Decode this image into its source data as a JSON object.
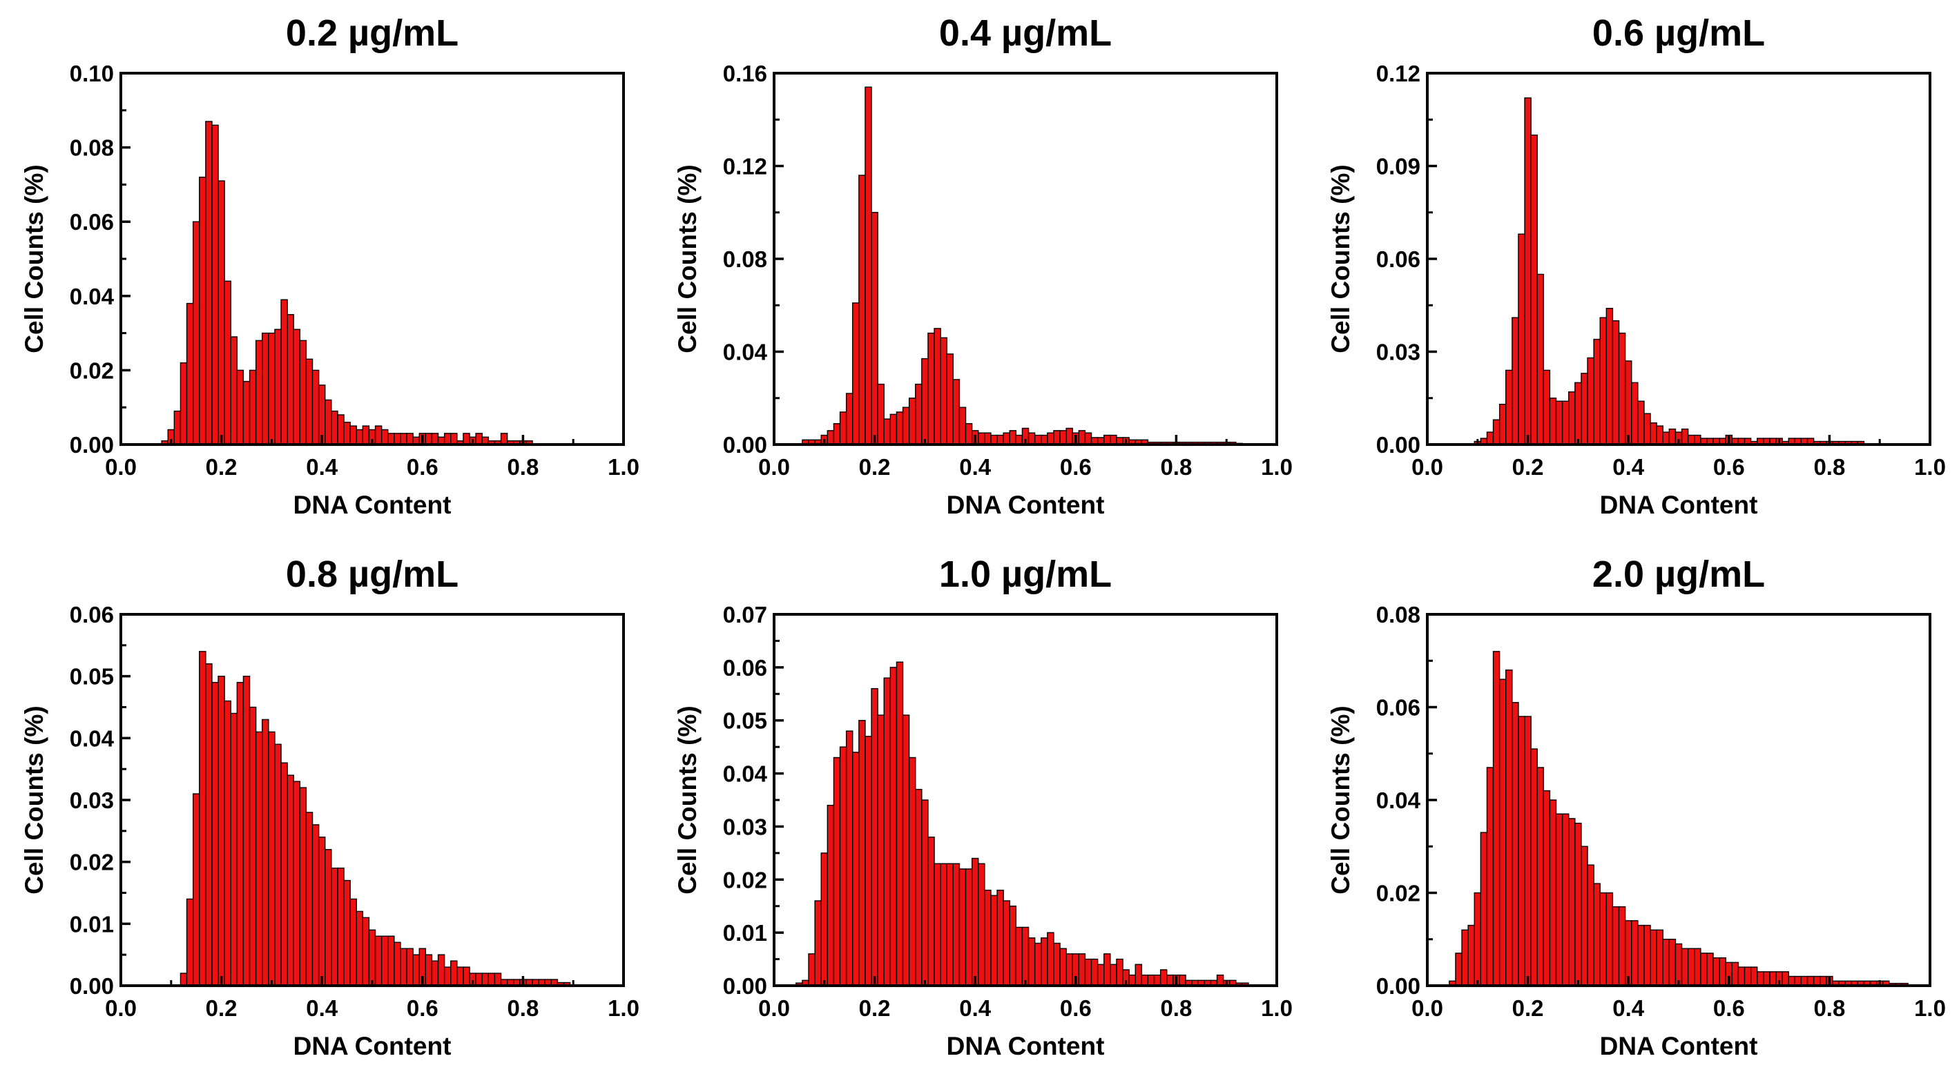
{
  "figure": {
    "bar_color": "#ee1111",
    "bar_edge_color": "#000000",
    "background": "#ffffff"
  },
  "chart_data": [
    {
      "type": "bar",
      "title": "0.2 µg/mL",
      "xlabel": "DNA Content",
      "ylabel": "Cell Counts (%)",
      "xlim": [
        0.0,
        1.0
      ],
      "ylim": [
        0.0,
        0.1
      ],
      "xticks": [
        "0.0",
        "0.2",
        "0.4",
        "0.6",
        "0.8",
        "1.0"
      ],
      "yticks": [
        "0.00",
        "0.02",
        "0.04",
        "0.06",
        "0.08",
        "0.10"
      ],
      "grid": false,
      "bin_width": 0.0125,
      "x": [
        0.0875,
        0.1,
        0.1125,
        0.125,
        0.1375,
        0.15,
        0.1625,
        0.175,
        0.1875,
        0.2,
        0.2125,
        0.225,
        0.2375,
        0.25,
        0.2625,
        0.275,
        0.2875,
        0.3,
        0.3125,
        0.325,
        0.3375,
        0.35,
        0.3625,
        0.375,
        0.3875,
        0.4,
        0.4125,
        0.425,
        0.4375,
        0.45,
        0.4625,
        0.475,
        0.4875,
        0.5,
        0.5125,
        0.525,
        0.5375,
        0.55,
        0.5625,
        0.575,
        0.5875,
        0.6,
        0.6125,
        0.625,
        0.6375,
        0.65,
        0.6625,
        0.675,
        0.6875,
        0.7,
        0.7125,
        0.725,
        0.7375,
        0.75,
        0.7625,
        0.775,
        0.7875,
        0.8,
        0.8125
      ],
      "values": [
        0.001,
        0.004,
        0.009,
        0.022,
        0.038,
        0.06,
        0.072,
        0.087,
        0.086,
        0.071,
        0.044,
        0.029,
        0.02,
        0.017,
        0.02,
        0.028,
        0.03,
        0.03,
        0.031,
        0.039,
        0.035,
        0.031,
        0.028,
        0.023,
        0.02,
        0.016,
        0.012,
        0.009,
        0.008,
        0.006,
        0.005,
        0.004,
        0.005,
        0.004,
        0.005,
        0.004,
        0.003,
        0.003,
        0.003,
        0.003,
        0.002,
        0.003,
        0.003,
        0.003,
        0.002,
        0.003,
        0.003,
        0.001,
        0.003,
        0.002,
        0.003,
        0.002,
        0.001,
        0.001,
        0.003,
        0.001,
        0.001,
        0.001,
        0.001
      ]
    },
    {
      "type": "bar",
      "title": "0.4 µg/mL",
      "xlabel": "DNA Content",
      "ylabel": "Cell Counts (%)",
      "xlim": [
        0.0,
        1.0
      ],
      "ylim": [
        0.0,
        0.16
      ],
      "xticks": [
        "0.0",
        "0.2",
        "0.4",
        "0.6",
        "0.8",
        "1.0"
      ],
      "yticks": [
        "0.00",
        "0.04",
        "0.08",
        "0.12",
        "0.16"
      ],
      "grid": false,
      "bin_width": 0.0125,
      "x": [
        0.0625,
        0.075,
        0.0875,
        0.1,
        0.1125,
        0.125,
        0.1375,
        0.15,
        0.1625,
        0.175,
        0.1875,
        0.2,
        0.2125,
        0.225,
        0.2375,
        0.25,
        0.2625,
        0.275,
        0.2875,
        0.3,
        0.3125,
        0.325,
        0.3375,
        0.35,
        0.3625,
        0.375,
        0.3875,
        0.4,
        0.4125,
        0.425,
        0.4375,
        0.45,
        0.4625,
        0.475,
        0.4875,
        0.5,
        0.5125,
        0.525,
        0.5375,
        0.55,
        0.5625,
        0.575,
        0.5875,
        0.6,
        0.6125,
        0.625,
        0.6375,
        0.65,
        0.6625,
        0.675,
        0.6875,
        0.7,
        0.7125,
        0.725,
        0.7375,
        0.75,
        0.7625,
        0.775,
        0.7875,
        0.8,
        0.8125,
        0.825,
        0.8375,
        0.85,
        0.8625,
        0.875,
        0.8875,
        0.9,
        0.9125,
        0.925
      ],
      "values": [
        0.002,
        0.002,
        0.002,
        0.004,
        0.006,
        0.009,
        0.014,
        0.022,
        0.061,
        0.116,
        0.154,
        0.1,
        0.026,
        0.011,
        0.013,
        0.014,
        0.016,
        0.02,
        0.026,
        0.037,
        0.048,
        0.05,
        0.046,
        0.039,
        0.028,
        0.016,
        0.009,
        0.006,
        0.005,
        0.005,
        0.004,
        0.004,
        0.005,
        0.006,
        0.004,
        0.007,
        0.005,
        0.004,
        0.004,
        0.005,
        0.006,
        0.006,
        0.007,
        0.005,
        0.006,
        0.005,
        0.003,
        0.003,
        0.004,
        0.004,
        0.003,
        0.003,
        0.002,
        0.002,
        0.002,
        0.001,
        0.001,
        0.001,
        0.001,
        0.001,
        0.001,
        0.001,
        0.001,
        0.001,
        0.001,
        0.001,
        0.001,
        0.001,
        0.001,
        0.0005
      ]
    },
    {
      "type": "bar",
      "title": "0.6 µg/mL",
      "xlabel": "DNA Content",
      "ylabel": "Cell Counts (%)",
      "xlim": [
        0.0,
        1.0
      ],
      "ylim": [
        0.0,
        0.12
      ],
      "xticks": [
        "0.0",
        "0.2",
        "0.4",
        "0.6",
        "0.8",
        "1.0"
      ],
      "yticks": [
        "0.00",
        "0.03",
        "0.06",
        "0.09",
        "0.12"
      ],
      "grid": false,
      "bin_width": 0.0125,
      "x": [
        0.1,
        0.1125,
        0.125,
        0.1375,
        0.15,
        0.1625,
        0.175,
        0.1875,
        0.2,
        0.2125,
        0.225,
        0.2375,
        0.25,
        0.2625,
        0.275,
        0.2875,
        0.3,
        0.3125,
        0.325,
        0.3375,
        0.35,
        0.3625,
        0.375,
        0.3875,
        0.4,
        0.4125,
        0.425,
        0.4375,
        0.45,
        0.4625,
        0.475,
        0.4875,
        0.5,
        0.5125,
        0.525,
        0.5375,
        0.55,
        0.5625,
        0.575,
        0.5875,
        0.6,
        0.6125,
        0.625,
        0.6375,
        0.65,
        0.6625,
        0.675,
        0.6875,
        0.7,
        0.7125,
        0.725,
        0.7375,
        0.75,
        0.7625,
        0.775,
        0.7875,
        0.8,
        0.8125,
        0.825,
        0.8375,
        0.85,
        0.8625
      ],
      "values": [
        0.001,
        0.002,
        0.004,
        0.008,
        0.013,
        0.024,
        0.041,
        0.068,
        0.112,
        0.1,
        0.055,
        0.024,
        0.015,
        0.014,
        0.014,
        0.017,
        0.02,
        0.023,
        0.028,
        0.034,
        0.041,
        0.044,
        0.04,
        0.036,
        0.027,
        0.02,
        0.014,
        0.01,
        0.007,
        0.006,
        0.004,
        0.005,
        0.004,
        0.005,
        0.003,
        0.003,
        0.002,
        0.002,
        0.002,
        0.002,
        0.003,
        0.002,
        0.002,
        0.002,
        0.001,
        0.002,
        0.002,
        0.002,
        0.002,
        0.001,
        0.002,
        0.002,
        0.002,
        0.002,
        0.001,
        0.001,
        0.001,
        0.001,
        0.001,
        0.001,
        0.001,
        0.001
      ]
    },
    {
      "type": "bar",
      "title": "0.8 µg/mL",
      "xlabel": "DNA Content",
      "ylabel": "Cell Counts (%)",
      "xlim": [
        0.0,
        1.0
      ],
      "ylim": [
        0.0,
        0.06
      ],
      "xticks": [
        "0.0",
        "0.2",
        "0.4",
        "0.6",
        "0.8",
        "1.0"
      ],
      "yticks": [
        "0.00",
        "0.01",
        "0.02",
        "0.03",
        "0.04",
        "0.05",
        "0.06"
      ],
      "grid": false,
      "bin_width": 0.0125,
      "x": [
        0.125,
        0.1375,
        0.15,
        0.1625,
        0.175,
        0.1875,
        0.2,
        0.2125,
        0.225,
        0.2375,
        0.25,
        0.2625,
        0.275,
        0.2875,
        0.3,
        0.3125,
        0.325,
        0.3375,
        0.35,
        0.3625,
        0.375,
        0.3875,
        0.4,
        0.4125,
        0.425,
        0.4375,
        0.45,
        0.4625,
        0.475,
        0.4875,
        0.5,
        0.5125,
        0.525,
        0.5375,
        0.55,
        0.5625,
        0.575,
        0.5875,
        0.6,
        0.6125,
        0.625,
        0.6375,
        0.65,
        0.6625,
        0.675,
        0.6875,
        0.7,
        0.7125,
        0.725,
        0.7375,
        0.75,
        0.7625,
        0.775,
        0.7875,
        0.8,
        0.8125,
        0.825,
        0.8375,
        0.85,
        0.8625,
        0.875,
        0.8875
      ],
      "values": [
        0.002,
        0.014,
        0.031,
        0.054,
        0.052,
        0.049,
        0.05,
        0.046,
        0.044,
        0.049,
        0.05,
        0.045,
        0.041,
        0.043,
        0.041,
        0.039,
        0.036,
        0.034,
        0.033,
        0.032,
        0.028,
        0.026,
        0.024,
        0.022,
        0.019,
        0.019,
        0.017,
        0.014,
        0.012,
        0.011,
        0.009,
        0.008,
        0.008,
        0.008,
        0.007,
        0.006,
        0.006,
        0.005,
        0.006,
        0.005,
        0.004,
        0.005,
        0.003,
        0.004,
        0.003,
        0.003,
        0.002,
        0.002,
        0.002,
        0.002,
        0.002,
        0.001,
        0.001,
        0.001,
        0.001,
        0.001,
        0.001,
        0.001,
        0.001,
        0.001,
        0.0005,
        0.0005
      ]
    },
    {
      "type": "bar",
      "title": "1.0 µg/mL",
      "xlabel": "DNA Content",
      "ylabel": "Cell Counts (%)",
      "xlim": [
        0.0,
        1.0
      ],
      "ylim": [
        0.0,
        0.07
      ],
      "xticks": [
        "0.0",
        "0.2",
        "0.4",
        "0.6",
        "0.8",
        "1.0"
      ],
      "yticks": [
        "0.00",
        "0.01",
        "0.02",
        "0.03",
        "0.04",
        "0.05",
        "0.06",
        "0.07"
      ],
      "grid": false,
      "bin_width": 0.0125,
      "x": [
        0.05,
        0.0625,
        0.075,
        0.0875,
        0.1,
        0.1125,
        0.125,
        0.1375,
        0.15,
        0.1625,
        0.175,
        0.1875,
        0.2,
        0.2125,
        0.225,
        0.2375,
        0.25,
        0.2625,
        0.275,
        0.2875,
        0.3,
        0.3125,
        0.325,
        0.3375,
        0.35,
        0.3625,
        0.375,
        0.3875,
        0.4,
        0.4125,
        0.425,
        0.4375,
        0.45,
        0.4625,
        0.475,
        0.4875,
        0.5,
        0.5125,
        0.525,
        0.5375,
        0.55,
        0.5625,
        0.575,
        0.5875,
        0.6,
        0.6125,
        0.625,
        0.6375,
        0.65,
        0.6625,
        0.675,
        0.6875,
        0.7,
        0.7125,
        0.725,
        0.7375,
        0.75,
        0.7625,
        0.775,
        0.7875,
        0.8,
        0.8125,
        0.825,
        0.8375,
        0.85,
        0.8625,
        0.875,
        0.8875,
        0.9,
        0.9125,
        0.925,
        0.9375
      ],
      "values": [
        0.0005,
        0.001,
        0.006,
        0.016,
        0.025,
        0.034,
        0.043,
        0.045,
        0.048,
        0.044,
        0.05,
        0.047,
        0.056,
        0.051,
        0.058,
        0.06,
        0.061,
        0.051,
        0.043,
        0.037,
        0.035,
        0.028,
        0.023,
        0.023,
        0.023,
        0.023,
        0.022,
        0.022,
        0.024,
        0.023,
        0.018,
        0.017,
        0.018,
        0.016,
        0.015,
        0.011,
        0.011,
        0.009,
        0.008,
        0.009,
        0.01,
        0.008,
        0.007,
        0.006,
        0.006,
        0.006,
        0.005,
        0.005,
        0.004,
        0.006,
        0.004,
        0.005,
        0.003,
        0.002,
        0.004,
        0.002,
        0.002,
        0.002,
        0.003,
        0.002,
        0.002,
        0.002,
        0.001,
        0.001,
        0.001,
        0.001,
        0.001,
        0.002,
        0.001,
        0.001,
        0.0005,
        0.0005
      ]
    },
    {
      "type": "bar",
      "title": "2.0 µg/mL",
      "xlabel": "DNA Content",
      "ylabel": "Cell Counts (%)",
      "xlim": [
        0.0,
        1.0
      ],
      "ylim": [
        0.0,
        0.08
      ],
      "xticks": [
        "0.0",
        "0.2",
        "0.4",
        "0.6",
        "0.8",
        "1.0"
      ],
      "yticks": [
        "0.00",
        "0.02",
        "0.04",
        "0.06",
        "0.08"
      ],
      "grid": false,
      "bin_width": 0.0125,
      "x": [
        0.05,
        0.0625,
        0.075,
        0.0875,
        0.1,
        0.1125,
        0.125,
        0.1375,
        0.15,
        0.1625,
        0.175,
        0.1875,
        0.2,
        0.2125,
        0.225,
        0.2375,
        0.25,
        0.2625,
        0.275,
        0.2875,
        0.3,
        0.3125,
        0.325,
        0.3375,
        0.35,
        0.3625,
        0.375,
        0.3875,
        0.4,
        0.4125,
        0.425,
        0.4375,
        0.45,
        0.4625,
        0.475,
        0.4875,
        0.5,
        0.5125,
        0.525,
        0.5375,
        0.55,
        0.5625,
        0.575,
        0.5875,
        0.6,
        0.6125,
        0.625,
        0.6375,
        0.65,
        0.6625,
        0.675,
        0.6875,
        0.7,
        0.7125,
        0.725,
        0.7375,
        0.75,
        0.7625,
        0.775,
        0.7875,
        0.8,
        0.8125,
        0.825,
        0.8375,
        0.85,
        0.8625,
        0.875,
        0.8875,
        0.9,
        0.9125,
        0.925,
        0.9375,
        0.95
      ],
      "values": [
        0.001,
        0.007,
        0.012,
        0.013,
        0.02,
        0.033,
        0.047,
        0.072,
        0.066,
        0.068,
        0.061,
        0.058,
        0.058,
        0.051,
        0.047,
        0.042,
        0.04,
        0.037,
        0.037,
        0.036,
        0.035,
        0.03,
        0.026,
        0.022,
        0.02,
        0.02,
        0.017,
        0.017,
        0.014,
        0.014,
        0.013,
        0.013,
        0.012,
        0.012,
        0.01,
        0.01,
        0.009,
        0.008,
        0.008,
        0.008,
        0.007,
        0.007,
        0.006,
        0.006,
        0.005,
        0.005,
        0.004,
        0.004,
        0.004,
        0.003,
        0.003,
        0.003,
        0.003,
        0.003,
        0.002,
        0.002,
        0.002,
        0.002,
        0.002,
        0.002,
        0.002,
        0.001,
        0.001,
        0.001,
        0.001,
        0.001,
        0.001,
        0.001,
        0.001,
        0.001,
        0.0005,
        0.0005,
        0.0005
      ]
    }
  ]
}
